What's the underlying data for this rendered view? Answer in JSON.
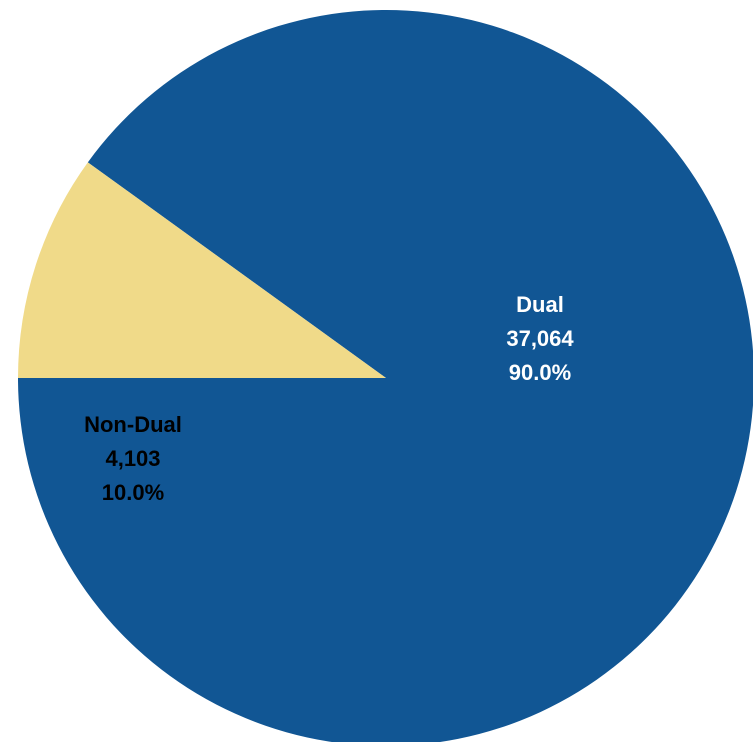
{
  "chart_data": {
    "type": "pie",
    "slices": [
      {
        "name": "Dual",
        "value": 37064,
        "value_text": "37,064",
        "percent": 90.0,
        "percent_text": "90.0%",
        "color": "#115694",
        "label_color": "#ffffff"
      },
      {
        "name": "Non-Dual",
        "value": 4103,
        "value_text": "4,103",
        "percent": 10.0,
        "percent_text": "10.0%",
        "color": "#f0da89",
        "label_color": "#000000"
      }
    ],
    "start_angle_deg": 180,
    "direction": "counterclockwise"
  }
}
